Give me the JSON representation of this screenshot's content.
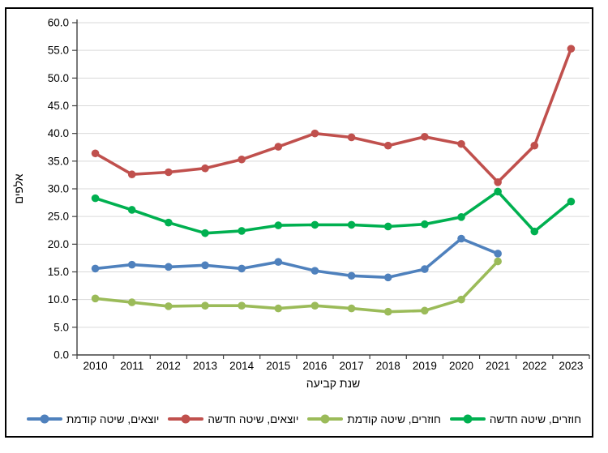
{
  "chart_data": {
    "type": "line",
    "title": "",
    "xlabel": "שנת קביעה",
    "ylabel": "אלפים",
    "ylim": [
      0,
      60
    ],
    "ytick_step": 5,
    "ytick_decimals": 1,
    "grid": "horizontal",
    "legend_position": "bottom",
    "categories": [
      "2010",
      "2011",
      "2012",
      "2013",
      "2014",
      "2015",
      "2016",
      "2017",
      "2018",
      "2019",
      "2020",
      "2021",
      "2022",
      "2023"
    ],
    "series": [
      {
        "name": "יוצאים, שיטה קודמת",
        "color": "#4F81BD",
        "values": [
          15.6,
          16.3,
          15.9,
          16.2,
          15.6,
          16.8,
          15.2,
          14.3,
          14.0,
          15.5,
          21.0,
          18.3,
          null,
          null
        ]
      },
      {
        "name": "יוצאים, שיטה חדשה",
        "color": "#C0504D",
        "values": [
          36.4,
          32.6,
          33.0,
          33.7,
          35.3,
          37.6,
          40.0,
          39.3,
          37.8,
          39.4,
          38.1,
          31.2,
          37.8,
          55.3
        ]
      },
      {
        "name": "חוזרים, שיטה קודמת",
        "color": "#9BBB59",
        "values": [
          10.2,
          9.5,
          8.8,
          8.9,
          8.9,
          8.4,
          8.9,
          8.4,
          7.8,
          8.0,
          10.0,
          16.9,
          null,
          null
        ]
      },
      {
        "name": "חוזרים, שיטה חדשה",
        "color": "#00B050",
        "values": [
          28.3,
          26.2,
          23.9,
          22.0,
          22.4,
          23.4,
          23.5,
          23.5,
          23.2,
          23.6,
          24.9,
          29.5,
          22.3,
          27.7
        ]
      }
    ]
  },
  "colors": {
    "gridline": "#D9D9D9",
    "axis": "#404040",
    "text": "#000000",
    "frame_border": "#000000"
  }
}
